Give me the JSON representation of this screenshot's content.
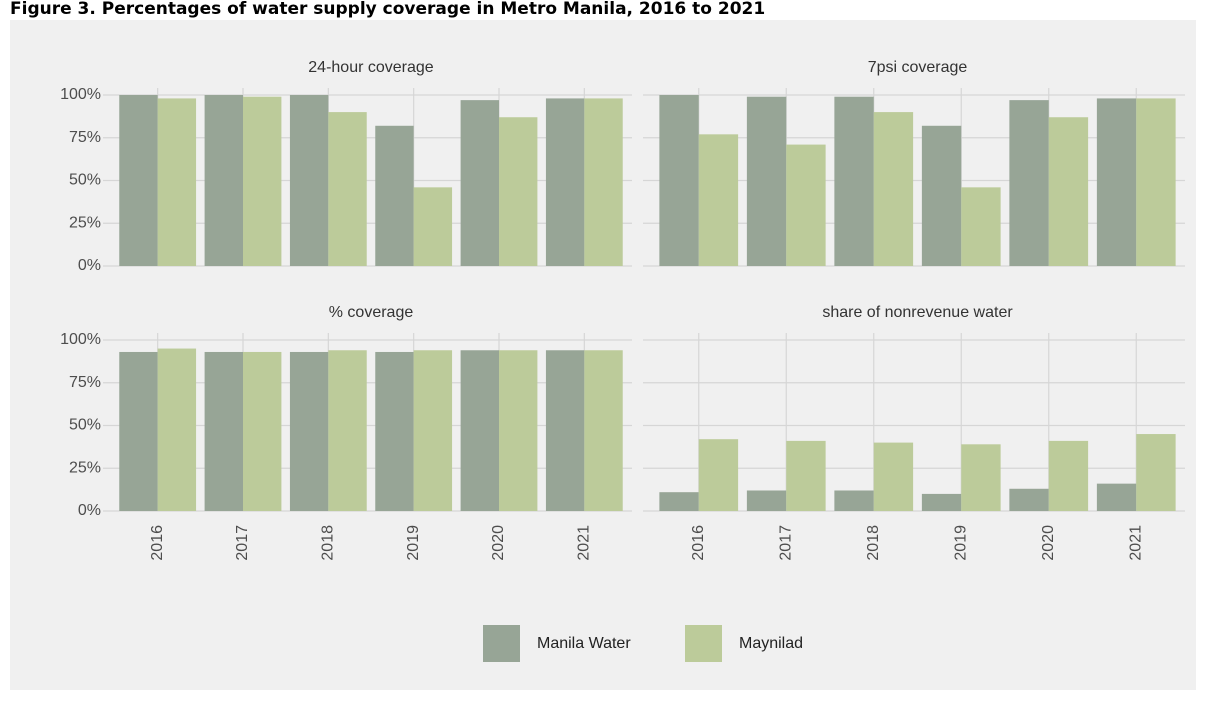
{
  "title": "Figure 3. Percentages of water supply coverage in Metro Manila, 2016 to 2021",
  "chart_data": [
    {
      "type": "bar",
      "title": "24-hour coverage",
      "categories": [
        "2016",
        "2017",
        "2018",
        "2019",
        "2020",
        "2021"
      ],
      "series": [
        {
          "name": "Manila Water",
          "color": "#97a596",
          "values": [
            100,
            100,
            100,
            82,
            97,
            98
          ]
        },
        {
          "name": "Maynilad",
          "color": "#bccb9a",
          "values": [
            98,
            99,
            90,
            46,
            87,
            98
          ]
        }
      ],
      "ylim": [
        0,
        100
      ],
      "yticks": [
        {
          "value": 0,
          "label": "0%"
        },
        {
          "value": 25,
          "label": "25%"
        },
        {
          "value": 50,
          "label": "50%"
        },
        {
          "value": 75,
          "label": "75%"
        },
        {
          "value": 100,
          "label": "100%"
        }
      ],
      "grid": true
    },
    {
      "type": "bar",
      "title": "7psi coverage",
      "categories": [
        "2016",
        "2017",
        "2018",
        "2019",
        "2020",
        "2021"
      ],
      "series": [
        {
          "name": "Manila Water",
          "color": "#97a596",
          "values": [
            100,
            99,
            99,
            82,
            97,
            98
          ]
        },
        {
          "name": "Maynilad",
          "color": "#bccb9a",
          "values": [
            77,
            71,
            90,
            46,
            87,
            98
          ]
        }
      ],
      "ylim": [
        0,
        100
      ],
      "yticks": [
        {
          "value": 0,
          "label": "0%"
        },
        {
          "value": 25,
          "label": "25%"
        },
        {
          "value": 50,
          "label": "50%"
        },
        {
          "value": 75,
          "label": "75%"
        },
        {
          "value": 100,
          "label": "100%"
        }
      ],
      "grid": true
    },
    {
      "type": "bar",
      "title": "% coverage",
      "categories": [
        "2016",
        "2017",
        "2018",
        "2019",
        "2020",
        "2021"
      ],
      "series": [
        {
          "name": "Manila Water",
          "color": "#97a596",
          "values": [
            93,
            93,
            93,
            93,
            94,
            94
          ]
        },
        {
          "name": "Maynilad",
          "color": "#bccb9a",
          "values": [
            95,
            93,
            94,
            94,
            94,
            94
          ]
        }
      ],
      "ylim": [
        0,
        100
      ],
      "yticks": [
        {
          "value": 0,
          "label": "0%"
        },
        {
          "value": 25,
          "label": "25%"
        },
        {
          "value": 50,
          "label": "50%"
        },
        {
          "value": 75,
          "label": "75%"
        },
        {
          "value": 100,
          "label": "100%"
        }
      ],
      "grid": true
    },
    {
      "type": "bar",
      "title": "share of nonrevenue water",
      "categories": [
        "2016",
        "2017",
        "2018",
        "2019",
        "2020",
        "2021"
      ],
      "series": [
        {
          "name": "Manila Water",
          "color": "#97a596",
          "values": [
            11,
            12,
            12,
            10,
            13,
            16
          ]
        },
        {
          "name": "Maynilad",
          "color": "#bccb9a",
          "values": [
            42,
            41,
            40,
            39,
            41,
            45
          ]
        }
      ],
      "ylim": [
        0,
        100
      ],
      "yticks": [
        {
          "value": 0,
          "label": "0%"
        },
        {
          "value": 25,
          "label": "25%"
        },
        {
          "value": 50,
          "label": "50%"
        },
        {
          "value": 75,
          "label": "75%"
        },
        {
          "value": 100,
          "label": "100%"
        }
      ],
      "grid": true
    }
  ]
}
